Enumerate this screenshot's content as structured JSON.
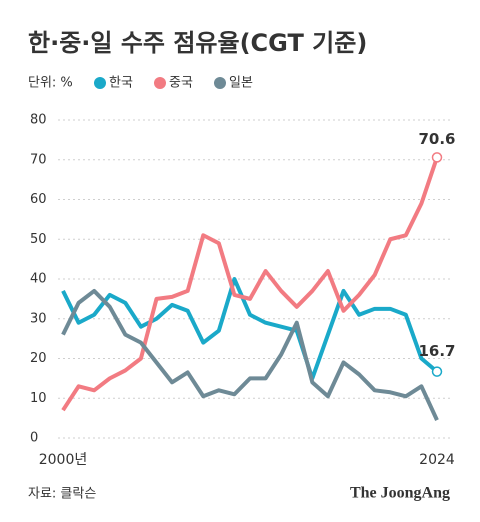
{
  "chart_data": {
    "type": "line",
    "title": "한·중·일 수주 점유율(CGT 기준)",
    "unit_label": "단위: %",
    "source": "자료: 클락슨",
    "brand": "The JoongAng",
    "x": [
      2000,
      2001,
      2002,
      2003,
      2004,
      2005,
      2006,
      2007,
      2008,
      2009,
      2010,
      2011,
      2012,
      2013,
      2014,
      2015,
      2016,
      2017,
      2018,
      2019,
      2020,
      2021,
      2022,
      2023,
      2024
    ],
    "xlim": [
      2000,
      2024
    ],
    "xticks": [
      {
        "value": 2000,
        "label": "2000년"
      },
      2024
    ],
    "ylim": [
      0,
      80
    ],
    "yticks": [
      0,
      10,
      20,
      30,
      40,
      50,
      60,
      70,
      80
    ],
    "grid": true,
    "series": [
      {
        "name": "한국",
        "color": "#1aa9c9",
        "values": [
          37,
          29,
          31,
          36,
          34,
          28,
          30,
          33.5,
          32,
          24,
          27,
          40,
          31,
          29,
          28,
          27,
          15,
          26,
          37,
          31,
          32.5,
          32.5,
          31,
          20,
          16.7
        ]
      },
      {
        "name": "중국",
        "color": "#f27b82",
        "values": [
          7,
          13,
          12,
          15,
          17,
          20,
          35,
          35.5,
          37,
          51,
          49,
          36,
          35,
          42,
          37,
          33,
          37,
          42,
          32,
          36,
          41,
          50,
          51,
          59,
          70.6
        ]
      },
      {
        "name": "일본",
        "color": "#6e8a96",
        "values": [
          26,
          34,
          37,
          33,
          26,
          24,
          19,
          14,
          16.5,
          10.5,
          12,
          11,
          15,
          15,
          21,
          29,
          14,
          10.5,
          19,
          16,
          12,
          11.5,
          10.5,
          13,
          4.5
        ]
      }
    ]
  }
}
